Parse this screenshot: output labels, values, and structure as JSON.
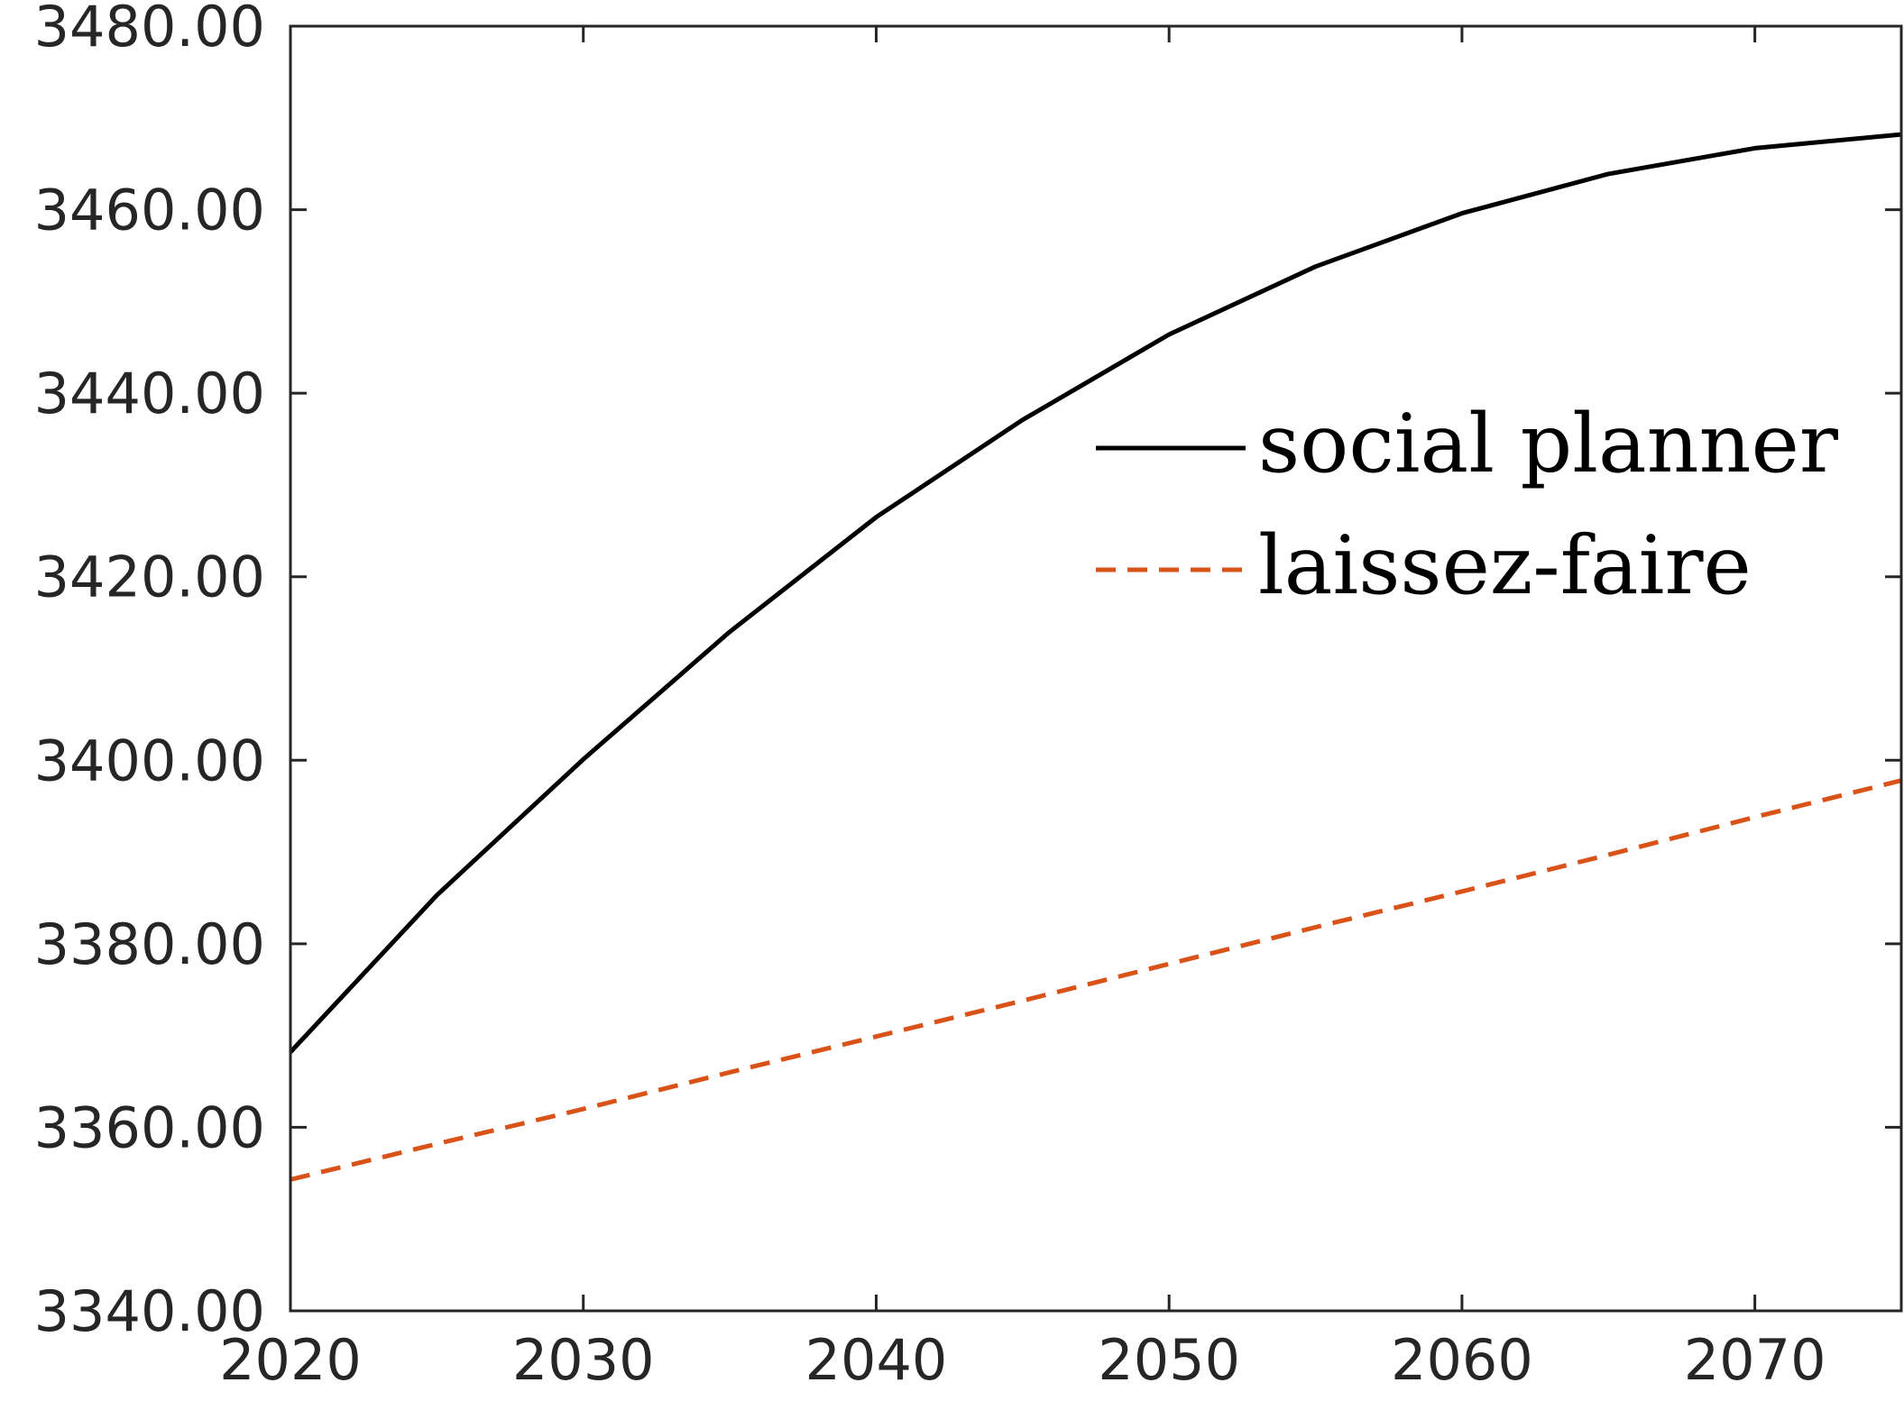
{
  "chart_data": {
    "type": "line",
    "title": "",
    "xlabel": "",
    "ylabel": "",
    "xlim": [
      2020,
      2075
    ],
    "ylim": [
      3340,
      3480
    ],
    "x_ticks": [
      2020,
      2030,
      2040,
      2050,
      2060,
      2070
    ],
    "y_ticks": [
      3340,
      3360,
      3380,
      3400,
      3420,
      3440,
      3460,
      3480
    ],
    "y_tick_labels": [
      "3340.00",
      "3360.00",
      "3380.00",
      "3400.00",
      "3420.00",
      "3440.00",
      "3460.00",
      "3480.00"
    ],
    "grid": false,
    "legend_position": "right",
    "x": [
      2020,
      2025,
      2030,
      2035,
      2040,
      2045,
      2050,
      2055,
      2060,
      2065,
      2070,
      2075
    ],
    "series": [
      {
        "name": "social planner",
        "color": "#000000",
        "line_style": "solid",
        "values": [
          3368.2,
          3385.3,
          3400.1,
          3414.0,
          3426.5,
          3437.1,
          3446.4,
          3453.8,
          3459.6,
          3463.9,
          3466.7,
          3468.2
        ]
      },
      {
        "name": "laissez-faire",
        "color": "#d95319",
        "line_style": "dashed",
        "values": [
          3354.3,
          3358.2,
          3362.0,
          3366.0,
          3369.9,
          3373.8,
          3377.8,
          3381.8,
          3385.7,
          3389.7,
          3393.8,
          3397.8
        ]
      }
    ]
  }
}
